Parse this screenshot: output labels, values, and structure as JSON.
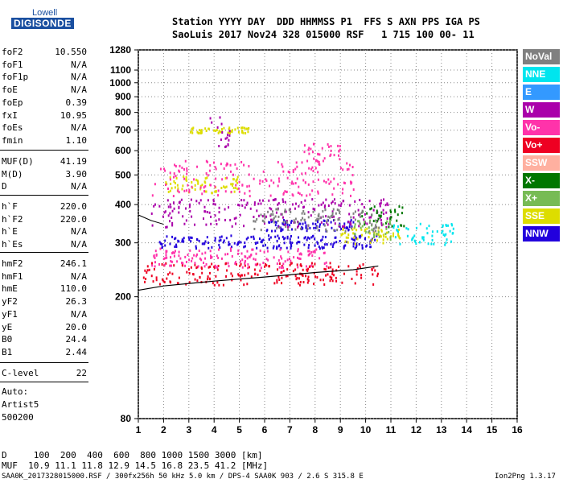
{
  "logo": {
    "line1": "Lowell",
    "line2": "DIGISONDE"
  },
  "header": {
    "line1": "Station YYYY DAY  DDD HHMMSS P1  FFS S AXN PPS IGA PS",
    "line2": "SaoLuis 2017 Nov24 328 015000 RSF   1 715 100 00- 11"
  },
  "params": {
    "group1": [
      {
        "label": "foF2",
        "value": "10.550"
      },
      {
        "label": "foF1",
        "value": "N/A"
      },
      {
        "label": "foF1p",
        "value": "N/A"
      },
      {
        "label": "foE",
        "value": "N/A"
      },
      {
        "label": "foEp",
        "value": "0.39"
      },
      {
        "label": "fxI",
        "value": "10.95"
      },
      {
        "label": "foEs",
        "value": "N/A"
      },
      {
        "label": "fmin",
        "value": "1.10"
      }
    ],
    "group2": [
      {
        "label": "MUF(D)",
        "value": "41.19"
      },
      {
        "label": "M(D)",
        "value": "3.90"
      },
      {
        "label": "D",
        "value": "N/A"
      }
    ],
    "group3": [
      {
        "label": "h`F",
        "value": "220.0"
      },
      {
        "label": "h`F2",
        "value": "220.0"
      },
      {
        "label": "h`E",
        "value": "N/A"
      },
      {
        "label": "h`Es",
        "value": "N/A"
      }
    ],
    "group4": [
      {
        "label": "hmF2",
        "value": "246.1"
      },
      {
        "label": "hmF1",
        "value": "N/A"
      },
      {
        "label": "hmE",
        "value": "110.0"
      },
      {
        "label": "yF2",
        "value": "26.3"
      },
      {
        "label": "yF1",
        "value": "N/A"
      },
      {
        "label": "yE",
        "value": "20.0"
      },
      {
        "label": "B0",
        "value": "24.4"
      },
      {
        "label": "B1",
        "value": "2.44"
      }
    ],
    "group5": [
      {
        "label": "C-level",
        "value": "22"
      }
    ],
    "auto": [
      "Auto:",
      "Artist5",
      "500200"
    ]
  },
  "legend": [
    {
      "label": "NoVal",
      "bg": "#808080",
      "fg": "#ffffff"
    },
    {
      "label": "NNE",
      "bg": "#00e5ee",
      "fg": "#ffffff"
    },
    {
      "label": "E",
      "bg": "#3399ff",
      "fg": "#ffffff"
    },
    {
      "label": "W",
      "bg": "#aa00aa",
      "fg": "#ffffff"
    },
    {
      "label": "Vo-",
      "bg": "#ff33aa",
      "fg": "#ffffff"
    },
    {
      "label": "Vo+",
      "bg": "#ee0022",
      "fg": "#ffffff"
    },
    {
      "label": "SSW",
      "bg": "#ffb0a0",
      "fg": "#ffffff"
    },
    {
      "label": "X-",
      "bg": "#007700",
      "fg": "#ffffff"
    },
    {
      "label": "X+",
      "bg": "#77bb55",
      "fg": "#ffffff"
    },
    {
      "label": "SSE",
      "bg": "#dddd00",
      "fg": "#ffffff"
    },
    {
      "label": "NNW",
      "bg": "#2200dd",
      "fg": "#ffffff"
    }
  ],
  "chart_data": {
    "type": "scatter",
    "x_ticks": [
      "1",
      "2",
      "3",
      "4",
      "5",
      "6",
      "7",
      "8",
      "9",
      "10",
      "11",
      "12",
      "13",
      "14",
      "15",
      "16"
    ],
    "y_ticks": [
      "80",
      "200",
      "300",
      "400",
      "500",
      "600",
      "700",
      "800",
      "900",
      "1000",
      "1100",
      "1280"
    ],
    "xlim": [
      1,
      16
    ],
    "ylim": [
      80,
      1280
    ],
    "y_scale": "log",
    "grid": true,
    "series": [
      {
        "color": "#ee0022",
        "clusters": [
          {
            "x": [
              1.1,
              10.5
            ],
            "y": [
              220,
              260
            ]
          }
        ]
      },
      {
        "color": "#2200dd",
        "clusters": [
          {
            "x": [
              1.8,
              10.5
            ],
            "y": [
              290,
              320
            ]
          },
          {
            "x": [
              6.0,
              9.5
            ],
            "y": [
              330,
              360
            ]
          }
        ]
      },
      {
        "color": "#dddd00",
        "clusters": [
          {
            "x": [
              9.0,
              11.5
            ],
            "y": [
              300,
              340
            ]
          },
          {
            "x": [
              2.0,
              5.0
            ],
            "y": [
              440,
              500
            ]
          },
          {
            "x": [
              3.0,
              5.5
            ],
            "y": [
              690,
              720
            ]
          }
        ]
      },
      {
        "color": "#ff33aa",
        "clusters": [
          {
            "x": [
              1.5,
              9.5
            ],
            "y": [
              430,
              560
            ]
          },
          {
            "x": [
              7.5,
              9.0
            ],
            "y": [
              560,
              640
            ]
          },
          {
            "x": [
              1.5,
              8.5
            ],
            "y": [
              250,
              290
            ]
          }
        ]
      },
      {
        "color": "#aa00aa",
        "clusters": [
          {
            "x": [
              1.5,
              11.0
            ],
            "y": [
              340,
              420
            ]
          },
          {
            "x": [
              3.8,
              4.6
            ],
            "y": [
              600,
              800
            ]
          }
        ]
      },
      {
        "color": "#00e5ee",
        "clusters": [
          {
            "x": [
              11.0,
              13.5
            ],
            "y": [
              295,
              350
            ]
          }
        ]
      },
      {
        "color": "#007700",
        "clusters": [
          {
            "x": [
              9.8,
              11.5
            ],
            "y": [
              340,
              400
            ]
          }
        ]
      },
      {
        "color": "#77bb55",
        "clusters": [
          {
            "x": [
              9.5,
              11.0
            ],
            "y": [
              310,
              360
            ]
          }
        ]
      },
      {
        "color": "#808080",
        "clusters": [
          {
            "x": [
              5.5,
              10.5
            ],
            "y": [
              330,
              390
            ]
          }
        ]
      }
    ],
    "trace": {
      "x": [
        1.0,
        2.0,
        4.0,
        6.0,
        8.0,
        9.5,
        10.5
      ],
      "y": [
        210,
        217,
        225,
        232,
        240,
        245,
        252
      ],
      "color": "#000000"
    },
    "profile": {
      "x": [
        1.0,
        1.5,
        2.0
      ],
      "y": [
        370,
        355,
        345
      ],
      "color": "#000000"
    }
  },
  "footer": {
    "dist_row": "D     100  200  400  600  800 1000 1500 3000 [km]",
    "muf_row": "MUF  10.9 11.1 11.8 12.9 14.5 16.8 23.5 41.2 [MHz]",
    "source": "SAA0K_2017328015000.RSF / 300fx256h 50 kHz 5.0 km / DPS-4 SAA0K 903 / 2.6 S 315.8 E",
    "version": "Ion2Png 1.3.17"
  }
}
